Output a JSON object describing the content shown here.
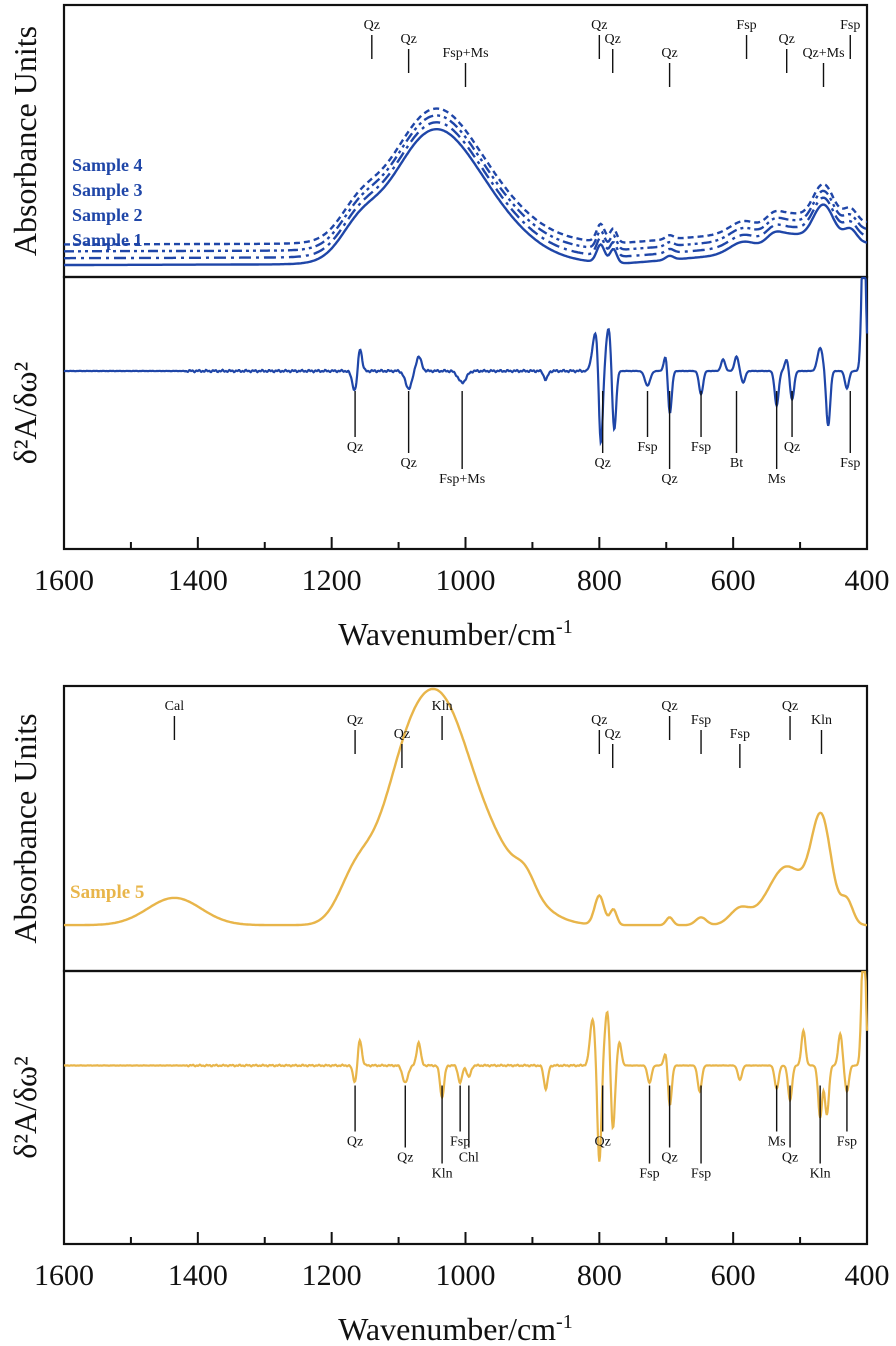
{
  "chart_data": [
    {
      "type": "line",
      "figure": "top",
      "x_range": [
        1600,
        400
      ],
      "xlabel": "Wavenumber/cm",
      "xlabel_sup": "-1",
      "x_ticks": [
        "1600",
        "1400",
        "1200",
        "1000",
        "800",
        "600",
        "400"
      ],
      "color": "#1f46a8",
      "upper": {
        "ylabel": "Absorbance Units",
        "series": [
          {
            "name": "Sample 1",
            "style": "solid",
            "offset": 0
          },
          {
            "name": "Sample 2",
            "style": "dashdot",
            "offset": 0.07
          },
          {
            "name": "Sample 3",
            "style": "dashdotdot",
            "offset": 0.14
          },
          {
            "name": "Sample 4",
            "style": "dashed",
            "offset": 0.21
          }
        ],
        "annotations": [
          {
            "text": "Qz",
            "x": 1140
          },
          {
            "text": "Qz",
            "x": 1085
          },
          {
            "text": "Fsp+Ms",
            "x": 1000
          },
          {
            "text": "Qz",
            "x": 800
          },
          {
            "text": "Qz",
            "x": 780
          },
          {
            "text": "Qz",
            "x": 695
          },
          {
            "text": "Fsp",
            "x": 580
          },
          {
            "text": "Qz",
            "x": 520
          },
          {
            "text": "Qz+Ms",
            "x": 465
          },
          {
            "text": "Fsp",
            "x": 425
          }
        ]
      },
      "lower": {
        "ylabel": "δ²A/δω²",
        "annotations": [
          {
            "text": "Qz",
            "x": 1165
          },
          {
            "text": "Qz",
            "x": 1085
          },
          {
            "text": "Fsp+Ms",
            "x": 1005
          },
          {
            "text": "Fsp",
            "x": 728
          },
          {
            "text": "Qz",
            "x": 795
          },
          {
            "text": "Qz",
            "x": 695
          },
          {
            "text": "Fsp",
            "x": 648
          },
          {
            "text": "Bt",
            "x": 595
          },
          {
            "text": "Ms",
            "x": 535
          },
          {
            "text": "Qz",
            "x": 512
          },
          {
            "text": "Fsp",
            "x": 425
          }
        ]
      }
    },
    {
      "type": "line",
      "figure": "bottom",
      "x_range": [
        1600,
        400
      ],
      "xlabel": "Wavenumber/cm",
      "xlabel_sup": "-1",
      "x_ticks": [
        "1600",
        "1400",
        "1200",
        "1000",
        "800",
        "600",
        "400"
      ],
      "color": "#e8b54a",
      "upper": {
        "ylabel": "Absorbance Units",
        "series": [
          {
            "name": "Sample 5",
            "style": "solid",
            "offset": 0
          }
        ],
        "annotations": [
          {
            "text": "Cal",
            "x": 1435
          },
          {
            "text": "Qz",
            "x": 1165
          },
          {
            "text": "Qz",
            "x": 1095
          },
          {
            "text": "Kln",
            "x": 1035
          },
          {
            "text": "Qz",
            "x": 800
          },
          {
            "text": "Qz",
            "x": 780
          },
          {
            "text": "Qz",
            "x": 695
          },
          {
            "text": "Fsp",
            "x": 648
          },
          {
            "text": "Fsp",
            "x": 590
          },
          {
            "text": "Qz",
            "x": 515
          },
          {
            "text": "Kln",
            "x": 468
          }
        ]
      },
      "lower": {
        "ylabel": "δ²A/δω²",
        "annotations": [
          {
            "text": "Qz",
            "x": 1165
          },
          {
            "text": "Qz",
            "x": 1090
          },
          {
            "text": "Kln",
            "x": 1035
          },
          {
            "text": "Fsp",
            "x": 1008
          },
          {
            "text": "Chl",
            "x": 995
          },
          {
            "text": "Fsp",
            "x": 725
          },
          {
            "text": "Qz",
            "x": 795
          },
          {
            "text": "Qz",
            "x": 695
          },
          {
            "text": "Fsp",
            "x": 648
          },
          {
            "text": "Ms",
            "x": 535
          },
          {
            "text": "Qz",
            "x": 515
          },
          {
            "text": "Kln",
            "x": 470
          },
          {
            "text": "Fsp",
            "x": 430
          }
        ]
      }
    }
  ]
}
